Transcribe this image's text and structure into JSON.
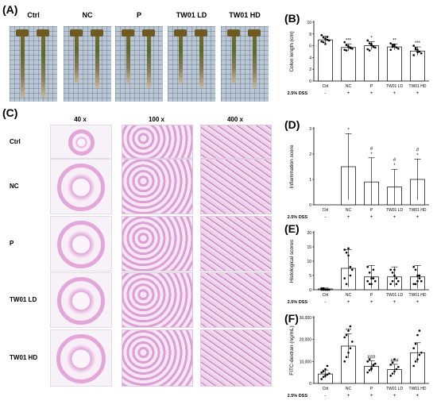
{
  "panel_A": {
    "label": "(A)",
    "groups": [
      "Ctrl",
      "NC",
      "P",
      "TW01 LD",
      "TW01 HD"
    ]
  },
  "panel_C": {
    "label": "(C)",
    "magnifications": [
      "40 x",
      "100 x",
      "400 x"
    ],
    "rows": [
      "Ctrl",
      "NC",
      "P",
      "TW01 LD",
      "TW01 HD"
    ]
  },
  "colors": {
    "tissue_pink": "#e3a6d9",
    "tissue_dark": "#b55aa6",
    "bar_fill": "#ffffff",
    "axis": "#000000"
  },
  "chart_data": [
    {
      "panel": "(B)",
      "type": "bar",
      "ylabel": "Colon length (cm)",
      "ylim": [
        0,
        10
      ],
      "yticks": [
        "0",
        "2",
        "4",
        "6",
        "8",
        "10"
      ],
      "categories": [
        "Ctrl",
        "NC",
        "P",
        "TW01 LD",
        "TW01 HD"
      ],
      "values": [
        7.0,
        5.7,
        6.0,
        5.8,
        5.1
      ],
      "errors": [
        0.6,
        0.6,
        0.7,
        0.5,
        0.7
      ],
      "significance": [
        "",
        "***",
        "*",
        "**",
        "***"
      ],
      "dss_label": "2.5% DSS",
      "dss": [
        "-",
        "+",
        "+",
        "+",
        "+"
      ],
      "points": [
        [
          7.8,
          7.4,
          7.2,
          7.0,
          6.9,
          6.7,
          6.6,
          6.3,
          7.5
        ],
        [
          6.6,
          6.1,
          5.8,
          5.6,
          5.5,
          5.3,
          5.2,
          5.9,
          5.7
        ],
        [
          6.9,
          6.4,
          6.1,
          5.9,
          5.7,
          5.4,
          5.2,
          6.3,
          5.8
        ],
        [
          6.4,
          6.1,
          5.9,
          5.7,
          5.5,
          5.3,
          5.8,
          6.2
        ],
        [
          6.0,
          5.6,
          5.3,
          5.0,
          4.7,
          4.4,
          5.4,
          4.9
        ]
      ]
    },
    {
      "panel": "(D)",
      "type": "bar",
      "ylabel": "Inflammation score",
      "ylim": [
        0,
        3
      ],
      "yticks": [
        "0",
        "1",
        "2",
        "3"
      ],
      "categories": [
        "Ctrl",
        "NC",
        "P",
        "TW01 LD",
        "TW01 HD"
      ],
      "values": [
        0,
        1.5,
        0.9,
        0.7,
        1.0
      ],
      "errors": [
        0,
        1.3,
        0.95,
        0.7,
        0.8
      ],
      "significance": [
        "",
        "*",
        "*",
        "*",
        "*"
      ],
      "significance2": [
        "",
        "",
        "#",
        "#",
        "#"
      ],
      "dss_label": "2.5% DSS",
      "dss": [
        "-",
        "+",
        "+",
        "+",
        "+"
      ],
      "points": []
    },
    {
      "panel": "(E)",
      "type": "bar",
      "ylabel": "Histological scores",
      "ylim": [
        0,
        20
      ],
      "yticks": [
        "0",
        "5",
        "10",
        "15",
        "20"
      ],
      "categories": [
        "Ctrl",
        "NC",
        "P",
        "TW01 LD",
        "TW01 HD"
      ],
      "values": [
        0.3,
        7.5,
        4.5,
        4.5,
        4.5
      ],
      "errors": [
        0.3,
        6.5,
        4.0,
        3.5,
        4.0
      ],
      "significance": [
        "",
        "",
        "",
        "",
        ""
      ],
      "dss_label": "2.5% DSS",
      "dss": [
        "-",
        "+",
        "+",
        "+",
        "+"
      ],
      "points": [
        [
          0,
          0,
          0,
          0,
          0,
          0.5,
          0.5,
          0,
          0
        ],
        [
          14,
          13,
          12,
          8,
          7,
          4,
          2,
          14.5,
          5
        ],
        [
          8,
          6,
          4,
          4,
          3,
          3,
          2,
          2,
          7
        ],
        [
          7,
          6,
          5,
          4,
          3,
          2,
          3,
          7,
          2
        ],
        [
          8,
          7,
          5,
          4,
          3,
          2,
          2,
          3,
          5
        ]
      ]
    },
    {
      "panel": "(F)",
      "type": "bar",
      "ylabel": "FITC-dextran (ng/mL)",
      "ylim": [
        0,
        30000
      ],
      "yticks": [
        "0",
        "10,000",
        "20,000",
        "30,000"
      ],
      "categories": [
        "Ctrl",
        "NC",
        "P",
        "TW01 LD",
        "TW01 HD"
      ],
      "values": [
        4300,
        17000,
        7800,
        6300,
        14000
      ],
      "errors": [
        1800,
        5500,
        2500,
        2400,
        4500
      ],
      "significance": [
        "",
        "***",
        "###",
        "###",
        ""
      ],
      "dss_label": "2.5% DSS",
      "dss": [
        "-",
        "+",
        "+",
        "+",
        "+"
      ],
      "points": [
        [
          2000,
          3000,
          3500,
          4000,
          4500,
          5000,
          5500,
          6500,
          8000
        ],
        [
          10000,
          12000,
          14000,
          16000,
          19000,
          21000,
          22000,
          24000,
          26000
        ],
        [
          5000,
          6000,
          7000,
          8000,
          9000,
          10000,
          11000,
          6500,
          8500
        ],
        [
          3500,
          4500,
          5500,
          6500,
          7500,
          8500,
          9500,
          11000
        ],
        [
          8000,
          10000,
          11000,
          13000,
          14000,
          16000,
          18000,
          22000,
          24000
        ]
      ]
    }
  ]
}
